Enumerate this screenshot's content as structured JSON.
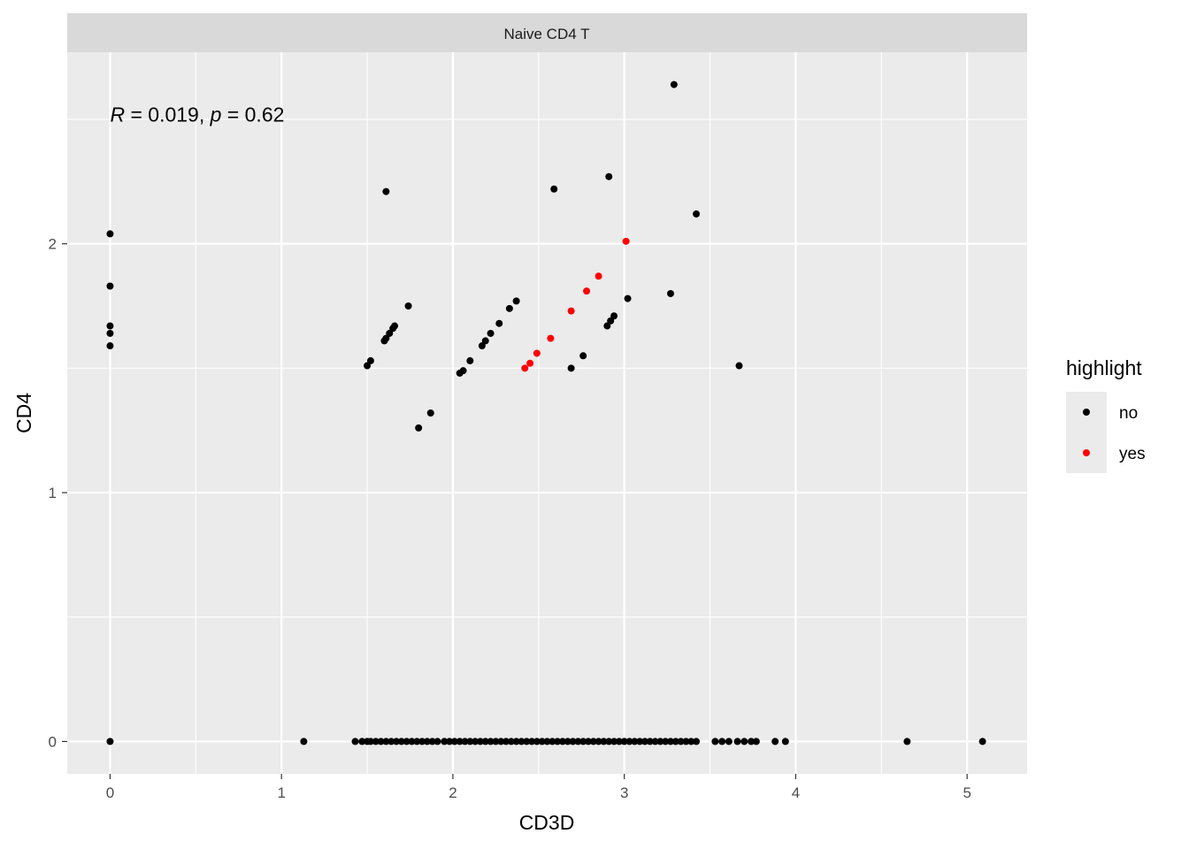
{
  "chart_data": {
    "type": "scatter",
    "facet_label": "Naive CD4 T",
    "xlabel": "CD3D",
    "ylabel": "CD4",
    "xlim": [
      -0.25,
      5.35
    ],
    "ylim": [
      -0.13,
      2.77
    ],
    "x_ticks": [
      0,
      1,
      2,
      3,
      4,
      5
    ],
    "y_ticks": [
      0,
      1,
      2
    ],
    "x_tick_labels": [
      "0",
      "1",
      "2",
      "3",
      "4",
      "5"
    ],
    "y_tick_labels": [
      "0",
      "1",
      "2"
    ],
    "grid": true,
    "annotation": {
      "r_symbol": "R",
      "r_text": " = 0.019, ",
      "p_symbol": "p",
      "p_text": " = 0.62",
      "x": 0.0,
      "y": 2.52
    },
    "legend": {
      "title": "highlight",
      "position": "right",
      "entries": [
        {
          "label": "no",
          "color": "#000000"
        },
        {
          "label": "yes",
          "color": "#ff0000"
        }
      ]
    },
    "series": [
      {
        "name": "no",
        "color": "#000000",
        "points": [
          [
            3.29,
            2.64
          ],
          [
            2.91,
            2.27
          ],
          [
            2.59,
            2.22
          ],
          [
            1.61,
            2.21
          ],
          [
            3.42,
            2.12
          ],
          [
            0.0,
            2.04
          ],
          [
            0.0,
            1.83
          ],
          [
            3.27,
            1.8
          ],
          [
            3.02,
            1.78
          ],
          [
            2.37,
            1.77
          ],
          [
            1.74,
            1.75
          ],
          [
            2.33,
            1.74
          ],
          [
            0.0,
            1.67
          ],
          [
            2.27,
            1.68
          ],
          [
            2.94,
            1.71
          ],
          [
            2.92,
            1.69
          ],
          [
            2.9,
            1.67
          ],
          [
            1.66,
            1.67
          ],
          [
            1.65,
            1.66
          ],
          [
            1.63,
            1.64
          ],
          [
            0.0,
            1.64
          ],
          [
            2.22,
            1.64
          ],
          [
            1.61,
            1.62
          ],
          [
            1.6,
            1.61
          ],
          [
            2.19,
            1.61
          ],
          [
            2.17,
            1.59
          ],
          [
            0.0,
            1.59
          ],
          [
            2.76,
            1.55
          ],
          [
            1.52,
            1.53
          ],
          [
            2.1,
            1.53
          ],
          [
            1.5,
            1.51
          ],
          [
            3.67,
            1.51
          ],
          [
            2.69,
            1.5
          ],
          [
            2.06,
            1.49
          ],
          [
            2.04,
            1.48
          ],
          [
            1.87,
            1.32
          ],
          [
            1.8,
            1.26
          ],
          [
            0.0,
            0.0
          ],
          [
            1.13,
            0.0
          ],
          [
            1.43,
            0.0
          ],
          [
            1.47,
            0.0
          ],
          [
            1.5,
            0.0
          ],
          [
            1.52,
            0.0
          ],
          [
            1.55,
            0.0
          ],
          [
            1.58,
            0.0
          ],
          [
            1.61,
            0.0
          ],
          [
            1.64,
            0.0
          ],
          [
            1.67,
            0.0
          ],
          [
            1.7,
            0.0
          ],
          [
            1.73,
            0.0
          ],
          [
            1.76,
            0.0
          ],
          [
            1.79,
            0.0
          ],
          [
            1.82,
            0.0
          ],
          [
            1.85,
            0.0
          ],
          [
            1.88,
            0.0
          ],
          [
            1.91,
            0.0
          ],
          [
            1.95,
            0.0
          ],
          [
            1.98,
            0.0
          ],
          [
            2.01,
            0.0
          ],
          [
            2.04,
            0.0
          ],
          [
            2.07,
            0.0
          ],
          [
            2.1,
            0.0
          ],
          [
            2.13,
            0.0
          ],
          [
            2.16,
            0.0
          ],
          [
            2.19,
            0.0
          ],
          [
            2.22,
            0.0
          ],
          [
            2.25,
            0.0
          ],
          [
            2.28,
            0.0
          ],
          [
            2.31,
            0.0
          ],
          [
            2.34,
            0.0
          ],
          [
            2.37,
            0.0
          ],
          [
            2.4,
            0.0
          ],
          [
            2.43,
            0.0
          ],
          [
            2.46,
            0.0
          ],
          [
            2.49,
            0.0
          ],
          [
            2.52,
            0.0
          ],
          [
            2.55,
            0.0
          ],
          [
            2.58,
            0.0
          ],
          [
            2.61,
            0.0
          ],
          [
            2.64,
            0.0
          ],
          [
            2.67,
            0.0
          ],
          [
            2.7,
            0.0
          ],
          [
            2.73,
            0.0
          ],
          [
            2.76,
            0.0
          ],
          [
            2.79,
            0.0
          ],
          [
            2.82,
            0.0
          ],
          [
            2.85,
            0.0
          ],
          [
            2.88,
            0.0
          ],
          [
            2.91,
            0.0
          ],
          [
            2.94,
            0.0
          ],
          [
            2.97,
            0.0
          ],
          [
            3.0,
            0.0
          ],
          [
            3.03,
            0.0
          ],
          [
            3.06,
            0.0
          ],
          [
            3.09,
            0.0
          ],
          [
            3.12,
            0.0
          ],
          [
            3.15,
            0.0
          ],
          [
            3.18,
            0.0
          ],
          [
            3.21,
            0.0
          ],
          [
            3.24,
            0.0
          ],
          [
            3.27,
            0.0
          ],
          [
            3.3,
            0.0
          ],
          [
            3.33,
            0.0
          ],
          [
            3.36,
            0.0
          ],
          [
            3.39,
            0.0
          ],
          [
            3.42,
            0.0
          ],
          [
            3.53,
            0.0
          ],
          [
            3.57,
            0.0
          ],
          [
            3.61,
            0.0
          ],
          [
            3.66,
            0.0
          ],
          [
            3.7,
            0.0
          ],
          [
            3.74,
            0.0
          ],
          [
            3.77,
            0.0
          ],
          [
            3.88,
            0.0
          ],
          [
            3.94,
            0.0
          ],
          [
            4.65,
            0.0
          ],
          [
            5.09,
            0.0
          ]
        ]
      },
      {
        "name": "yes",
        "color": "#ff0000",
        "points": [
          [
            3.01,
            2.01
          ],
          [
            2.85,
            1.87
          ],
          [
            2.78,
            1.81
          ],
          [
            2.69,
            1.73
          ],
          [
            2.57,
            1.62
          ],
          [
            2.49,
            1.56
          ],
          [
            2.45,
            1.52
          ],
          [
            2.42,
            1.5
          ]
        ]
      }
    ]
  }
}
